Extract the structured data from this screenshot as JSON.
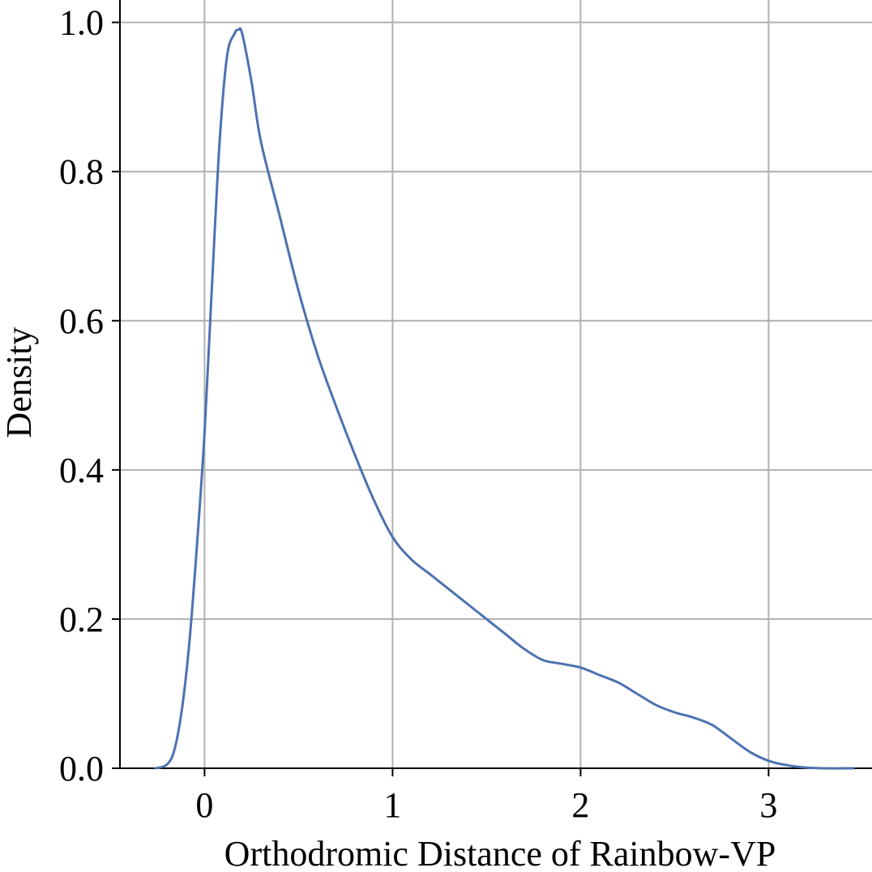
{
  "chart_data": {
    "type": "line",
    "title": "",
    "xlabel": "Orthodromic Distance of Rainbow-VP",
    "ylabel": "Density",
    "xlim": [
      -0.45,
      3.55
    ],
    "ylim": [
      0,
      1.03
    ],
    "xticks": [
      0,
      1,
      2,
      3
    ],
    "xtick_labels": [
      "0",
      "1",
      "2",
      "3"
    ],
    "yticks": [
      0.0,
      0.2,
      0.4,
      0.6,
      0.8,
      1.0
    ],
    "ytick_labels": [
      "0.0",
      "0.2",
      "0.4",
      "0.6",
      "0.8",
      "1.0"
    ],
    "grid": true,
    "line_color": "#4c72b0",
    "series": [
      {
        "x": [
          -0.26,
          -0.2,
          -0.16,
          -0.12,
          -0.08,
          -0.04,
          0.0,
          0.04,
          0.08,
          0.12,
          0.16,
          0.18,
          0.2,
          0.25,
          0.3,
          0.4,
          0.5,
          0.6,
          0.7,
          0.8,
          0.9,
          1.0,
          1.1,
          1.2,
          1.3,
          1.4,
          1.5,
          1.6,
          1.7,
          1.8,
          1.9,
          2.0,
          2.1,
          2.2,
          2.3,
          2.4,
          2.5,
          2.6,
          2.7,
          2.8,
          2.9,
          3.0,
          3.1,
          3.2,
          3.3,
          3.45
        ],
        "y": [
          0.0,
          0.005,
          0.025,
          0.08,
          0.17,
          0.3,
          0.45,
          0.65,
          0.84,
          0.955,
          0.985,
          0.99,
          0.985,
          0.92,
          0.84,
          0.74,
          0.64,
          0.555,
          0.485,
          0.42,
          0.36,
          0.31,
          0.28,
          0.26,
          0.24,
          0.22,
          0.2,
          0.18,
          0.16,
          0.145,
          0.14,
          0.135,
          0.125,
          0.115,
          0.1,
          0.085,
          0.075,
          0.068,
          0.058,
          0.04,
          0.022,
          0.01,
          0.004,
          0.001,
          0.0,
          0.0
        ]
      }
    ]
  }
}
